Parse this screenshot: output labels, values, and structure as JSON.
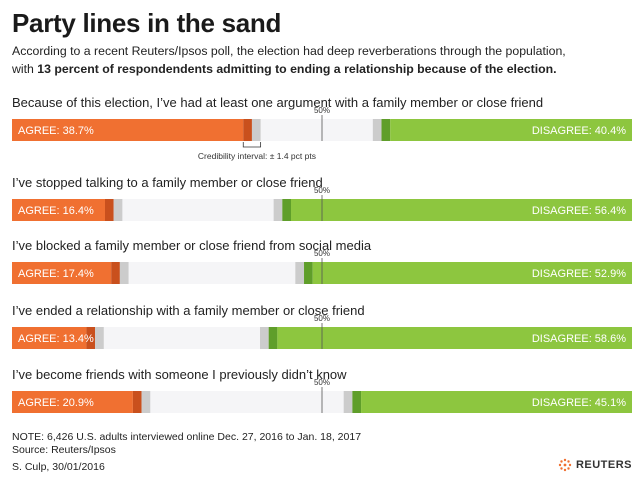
{
  "title": "Party lines in the sand",
  "subtitle_line1": "According to a recent Reuters/Ipsos poll, the election had deep reverberations through the population,",
  "subtitle_line2_pre": "with ",
  "subtitle_line2_bold": "13 percent of respondendents admitting to ending a relationship because of the election.",
  "colors": {
    "agree": "#f07031",
    "agree_ci": "#c9501d",
    "disagree": "#8dc63f",
    "disagree_ci": "#5f9e2a",
    "neutral": "#f5f5f7",
    "ci_gray": "#cccccc",
    "midline": "#555555"
  },
  "chart_data": {
    "type": "bar",
    "subtype": "diverging-stacked-horizontal",
    "midpoint_label": "50%",
    "credibility_interval_label": "Credibility interval: ± 1.4 pct pts",
    "credibility_interval_pct": 1.4,
    "categories": [
      "Because of this election, I’ve had at least one argument with a family member or close friend",
      "I’ve stopped talking to a family member or close friend",
      "I’ve blocked a family member or close friend from social media",
      "I’ve ended a relationship with a family member or close friend",
      "I’ve become friends with someone I previously didn’t know"
    ],
    "series": [
      {
        "name": "AGREE",
        "values": [
          38.7,
          16.4,
          17.4,
          13.4,
          20.9
        ]
      },
      {
        "name": "DISAGREE",
        "values": [
          40.4,
          56.4,
          52.9,
          58.6,
          45.1
        ]
      }
    ],
    "agree_labels": [
      "AGREE: 38.7%",
      "AGREE: 16.4%",
      "AGREE: 17.4%",
      "AGREE: 13.4%",
      "AGREE: 20.9%"
    ],
    "disagree_labels": [
      "DISAGREE: 40.4%",
      "DISAGREE: 56.4%",
      "DISAGREE: 52.9%",
      "DISAGREE: 58.6%",
      "DISAGREE: 45.1%"
    ],
    "xlim": [
      0,
      100
    ]
  },
  "footer": {
    "note": "NOTE: 6,426 U.S. adults interviewed online Dec. 27, 2016  to Jan. 18, 2017",
    "source": "Source: Reuters/Ipsos",
    "credit": "S. Culp,  30/01/2016",
    "logo": "REUTERS",
    "logo_icon": "reuters-dot-logo-icon"
  }
}
